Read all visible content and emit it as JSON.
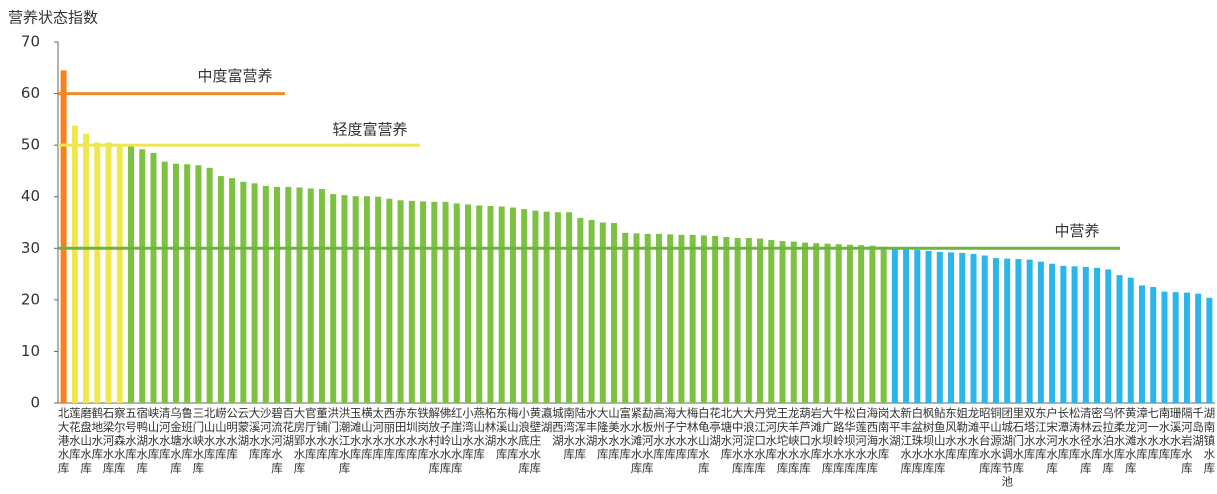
{
  "chart_data": {
    "type": "bar",
    "ylabel": "营养状态指数",
    "ylim": [
      0,
      70
    ],
    "yticks": [
      0,
      10,
      20,
      30,
      40,
      50,
      60,
      70
    ],
    "categories": [
      "北大港水库",
      "莲花水库",
      "磨盘山水库",
      "鹤地水库",
      "石梁河水库",
      "察尔森水库",
      "五号水库",
      "宿鸭湖水库",
      "峡山水库",
      "清河水库",
      "乌金塘水库",
      "鲁班水库",
      "三门峡水库",
      "北山水库",
      "崂山水库",
      "公明水库",
      "云蒙湖",
      "大溪水库",
      "沙河水库",
      "碧流河水库",
      "百花湖",
      "大房郢水库",
      "官厅水库",
      "董铺水库",
      "洪门水库",
      "洪潮江水库",
      "玉滩水库",
      "横山水库",
      "太河水库",
      "西丽水库",
      "赤田水库",
      "东圳水库",
      "铁岗水库",
      "解放村水库",
      "佛子岭水库",
      "红崖山水库",
      "小湾水库",
      "燕山水库",
      "柘林湖",
      "东溪水库",
      "梅山水库",
      "小浪底水库",
      "黄壁庄水库",
      "瀛湖",
      "城西湖",
      "南湾水库",
      "陆浑水库",
      "水丰湖",
      "大隆水库",
      "山美水库",
      "富水水库",
      "紧水滩水库",
      "勐板河水库",
      "高州水库",
      "海子水库",
      "大宁水库",
      "梅林水库",
      "白龟山水库",
      "花亭湖",
      "北塘水库",
      "大中河水库",
      "大浪淀水库",
      "丹江口水库",
      "党河水库",
      "王庆坨水库",
      "龙羊峡水库",
      "葫芦口水库",
      "岩滩水库",
      "大广坝水库",
      "牛路岭水库",
      "松华坝水库",
      "白莲河水库",
      "海西海水库",
      "岗南水库",
      "太平湖",
      "新丰江水库",
      "白盆珠水库",
      "枫树坝水库",
      "鲇鱼山水库",
      "东风水库",
      "姐勒水库",
      "龙滩水库",
      "昭平台水库",
      "铜山源水库",
      "团城湖调节池",
      "里石门水库",
      "双塔水库",
      "东江水库",
      "户宋河水库",
      "长潭水库",
      "松涛水库",
      "清林径水库",
      "密云水库",
      "乌拉泊水库",
      "怀柔水库",
      "黄龙滩水库",
      "漳河水库",
      "七一水库",
      "南水水库",
      "珊溪水库",
      "隔河岩水库",
      "千岛湖",
      "湖南镇水库"
    ],
    "values": [
      64.5,
      53.8,
      52.2,
      50.5,
      50.5,
      50.2,
      49.8,
      49.2,
      48.5,
      46.8,
      46.4,
      46.3,
      46.1,
      45.6,
      44.0,
      43.6,
      42.9,
      42.6,
      42.1,
      41.9,
      41.9,
      41.8,
      41.6,
      41.5,
      40.5,
      40.3,
      40.1,
      40.1,
      40.0,
      39.6,
      39.3,
      39.2,
      39.1,
      39.0,
      39.0,
      38.7,
      38.5,
      38.3,
      38.2,
      38.1,
      37.9,
      37.6,
      37.3,
      37.1,
      37.0,
      37.0,
      35.9,
      35.5,
      35.0,
      34.9,
      33.0,
      32.9,
      32.8,
      32.8,
      32.7,
      32.6,
      32.6,
      32.5,
      32.4,
      32.2,
      32.0,
      32.0,
      31.9,
      31.6,
      31.4,
      31.3,
      31.1,
      31.0,
      30.9,
      30.8,
      30.7,
      30.6,
      30.5,
      30.3,
      29.9,
      29.8,
      29.7,
      29.5,
      29.3,
      29.2,
      29.1,
      28.9,
      28.6,
      28.1,
      28.0,
      27.9,
      27.8,
      27.4,
      27.0,
      26.6,
      26.5,
      26.4,
      26.2,
      25.9,
      24.8,
      24.3,
      22.8,
      22.5,
      21.6,
      21.5,
      21.4,
      21.2,
      20.4
    ],
    "colors": [
      "#f5821f",
      "#eee84e",
      "#eee84e",
      "#eee84e",
      "#eee84e",
      "#eee84e",
      "#7cc142",
      "#7cc142",
      "#7cc142",
      "#7cc142",
      "#7cc142",
      "#7cc142",
      "#7cc142",
      "#7cc142",
      "#7cc142",
      "#7cc142",
      "#7cc142",
      "#7cc142",
      "#7cc142",
      "#7cc142",
      "#7cc142",
      "#7cc142",
      "#7cc142",
      "#7cc142",
      "#7cc142",
      "#7cc142",
      "#7cc142",
      "#7cc142",
      "#7cc142",
      "#7cc142",
      "#7cc142",
      "#7cc142",
      "#7cc142",
      "#7cc142",
      "#7cc142",
      "#7cc142",
      "#7cc142",
      "#7cc142",
      "#7cc142",
      "#7cc142",
      "#7cc142",
      "#7cc142",
      "#7cc142",
      "#7cc142",
      "#7cc142",
      "#7cc142",
      "#7cc142",
      "#7cc142",
      "#7cc142",
      "#7cc142",
      "#7cc142",
      "#7cc142",
      "#7cc142",
      "#7cc142",
      "#7cc142",
      "#7cc142",
      "#7cc142",
      "#7cc142",
      "#7cc142",
      "#7cc142",
      "#7cc142",
      "#7cc142",
      "#7cc142",
      "#7cc142",
      "#7cc142",
      "#7cc142",
      "#7cc142",
      "#7cc142",
      "#7cc142",
      "#7cc142",
      "#7cc142",
      "#7cc142",
      "#7cc142",
      "#7cc142",
      "#2bb5e8",
      "#2bb5e8",
      "#2bb5e8",
      "#2bb5e8",
      "#2bb5e8",
      "#2bb5e8",
      "#2bb5e8",
      "#2bb5e8",
      "#2bb5e8",
      "#2bb5e8",
      "#2bb5e8",
      "#2bb5e8",
      "#2bb5e8",
      "#2bb5e8",
      "#2bb5e8",
      "#2bb5e8",
      "#2bb5e8",
      "#2bb5e8",
      "#2bb5e8",
      "#2bb5e8",
      "#2bb5e8",
      "#2bb5e8",
      "#2bb5e8",
      "#2bb5e8",
      "#2bb5e8",
      "#2bb5e8",
      "#2bb5e8",
      "#2bb5e8",
      "#2bb5e8"
    ],
    "reference_lines": [
      {
        "label": "中度富营养",
        "value": 60,
        "color": "#f08a24"
      },
      {
        "label": "轻度富营养",
        "value": 50,
        "color": "#eee650"
      },
      {
        "label": "中营养",
        "value": 30,
        "color": "#6db33f"
      }
    ]
  }
}
